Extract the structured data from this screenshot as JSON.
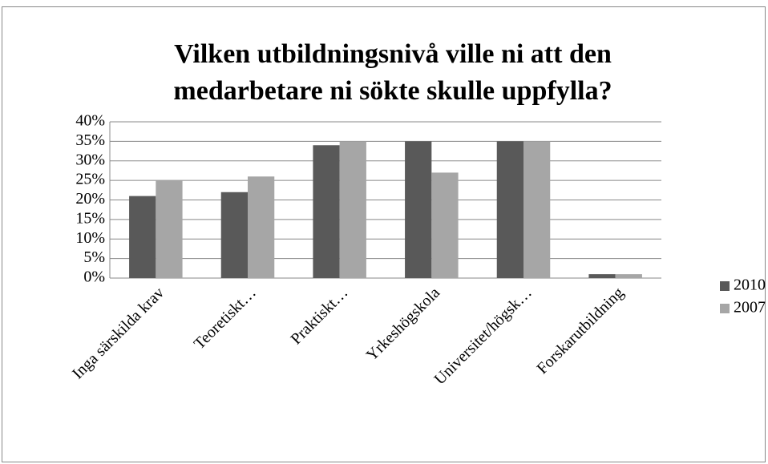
{
  "chart_data": {
    "type": "bar",
    "title": [
      "Vilken utbildningsnivå ville ni att den",
      "medarbetare ni sökte skulle uppfylla?"
    ],
    "categories": [
      "Inga särskilda krav",
      "Teoretiskt…",
      "Praktiskt…",
      "Yrkeshögskola",
      "Universitet/högsk…",
      "Forskarutbildning"
    ],
    "series": [
      {
        "name": "2010",
        "color": "#595959",
        "values": [
          21,
          22,
          34,
          35,
          35,
          1
        ]
      },
      {
        "name": "2007",
        "color": "#a6a6a6",
        "values": [
          25,
          26,
          35,
          27,
          35,
          1
        ]
      }
    ],
    "ylim": [
      0,
      40
    ],
    "yticks": [
      {
        "value": 0,
        "label": "0%"
      },
      {
        "value": 5,
        "label": "5%"
      },
      {
        "value": 10,
        "label": "10%"
      },
      {
        "value": 15,
        "label": "15%"
      },
      {
        "value": 20,
        "label": "20%"
      },
      {
        "value": 25,
        "label": "25%"
      },
      {
        "value": 30,
        "label": "30%"
      },
      {
        "value": 35,
        "label": "35%"
      },
      {
        "value": 40,
        "label": "40%"
      }
    ],
    "grid": true,
    "legend": "right"
  }
}
